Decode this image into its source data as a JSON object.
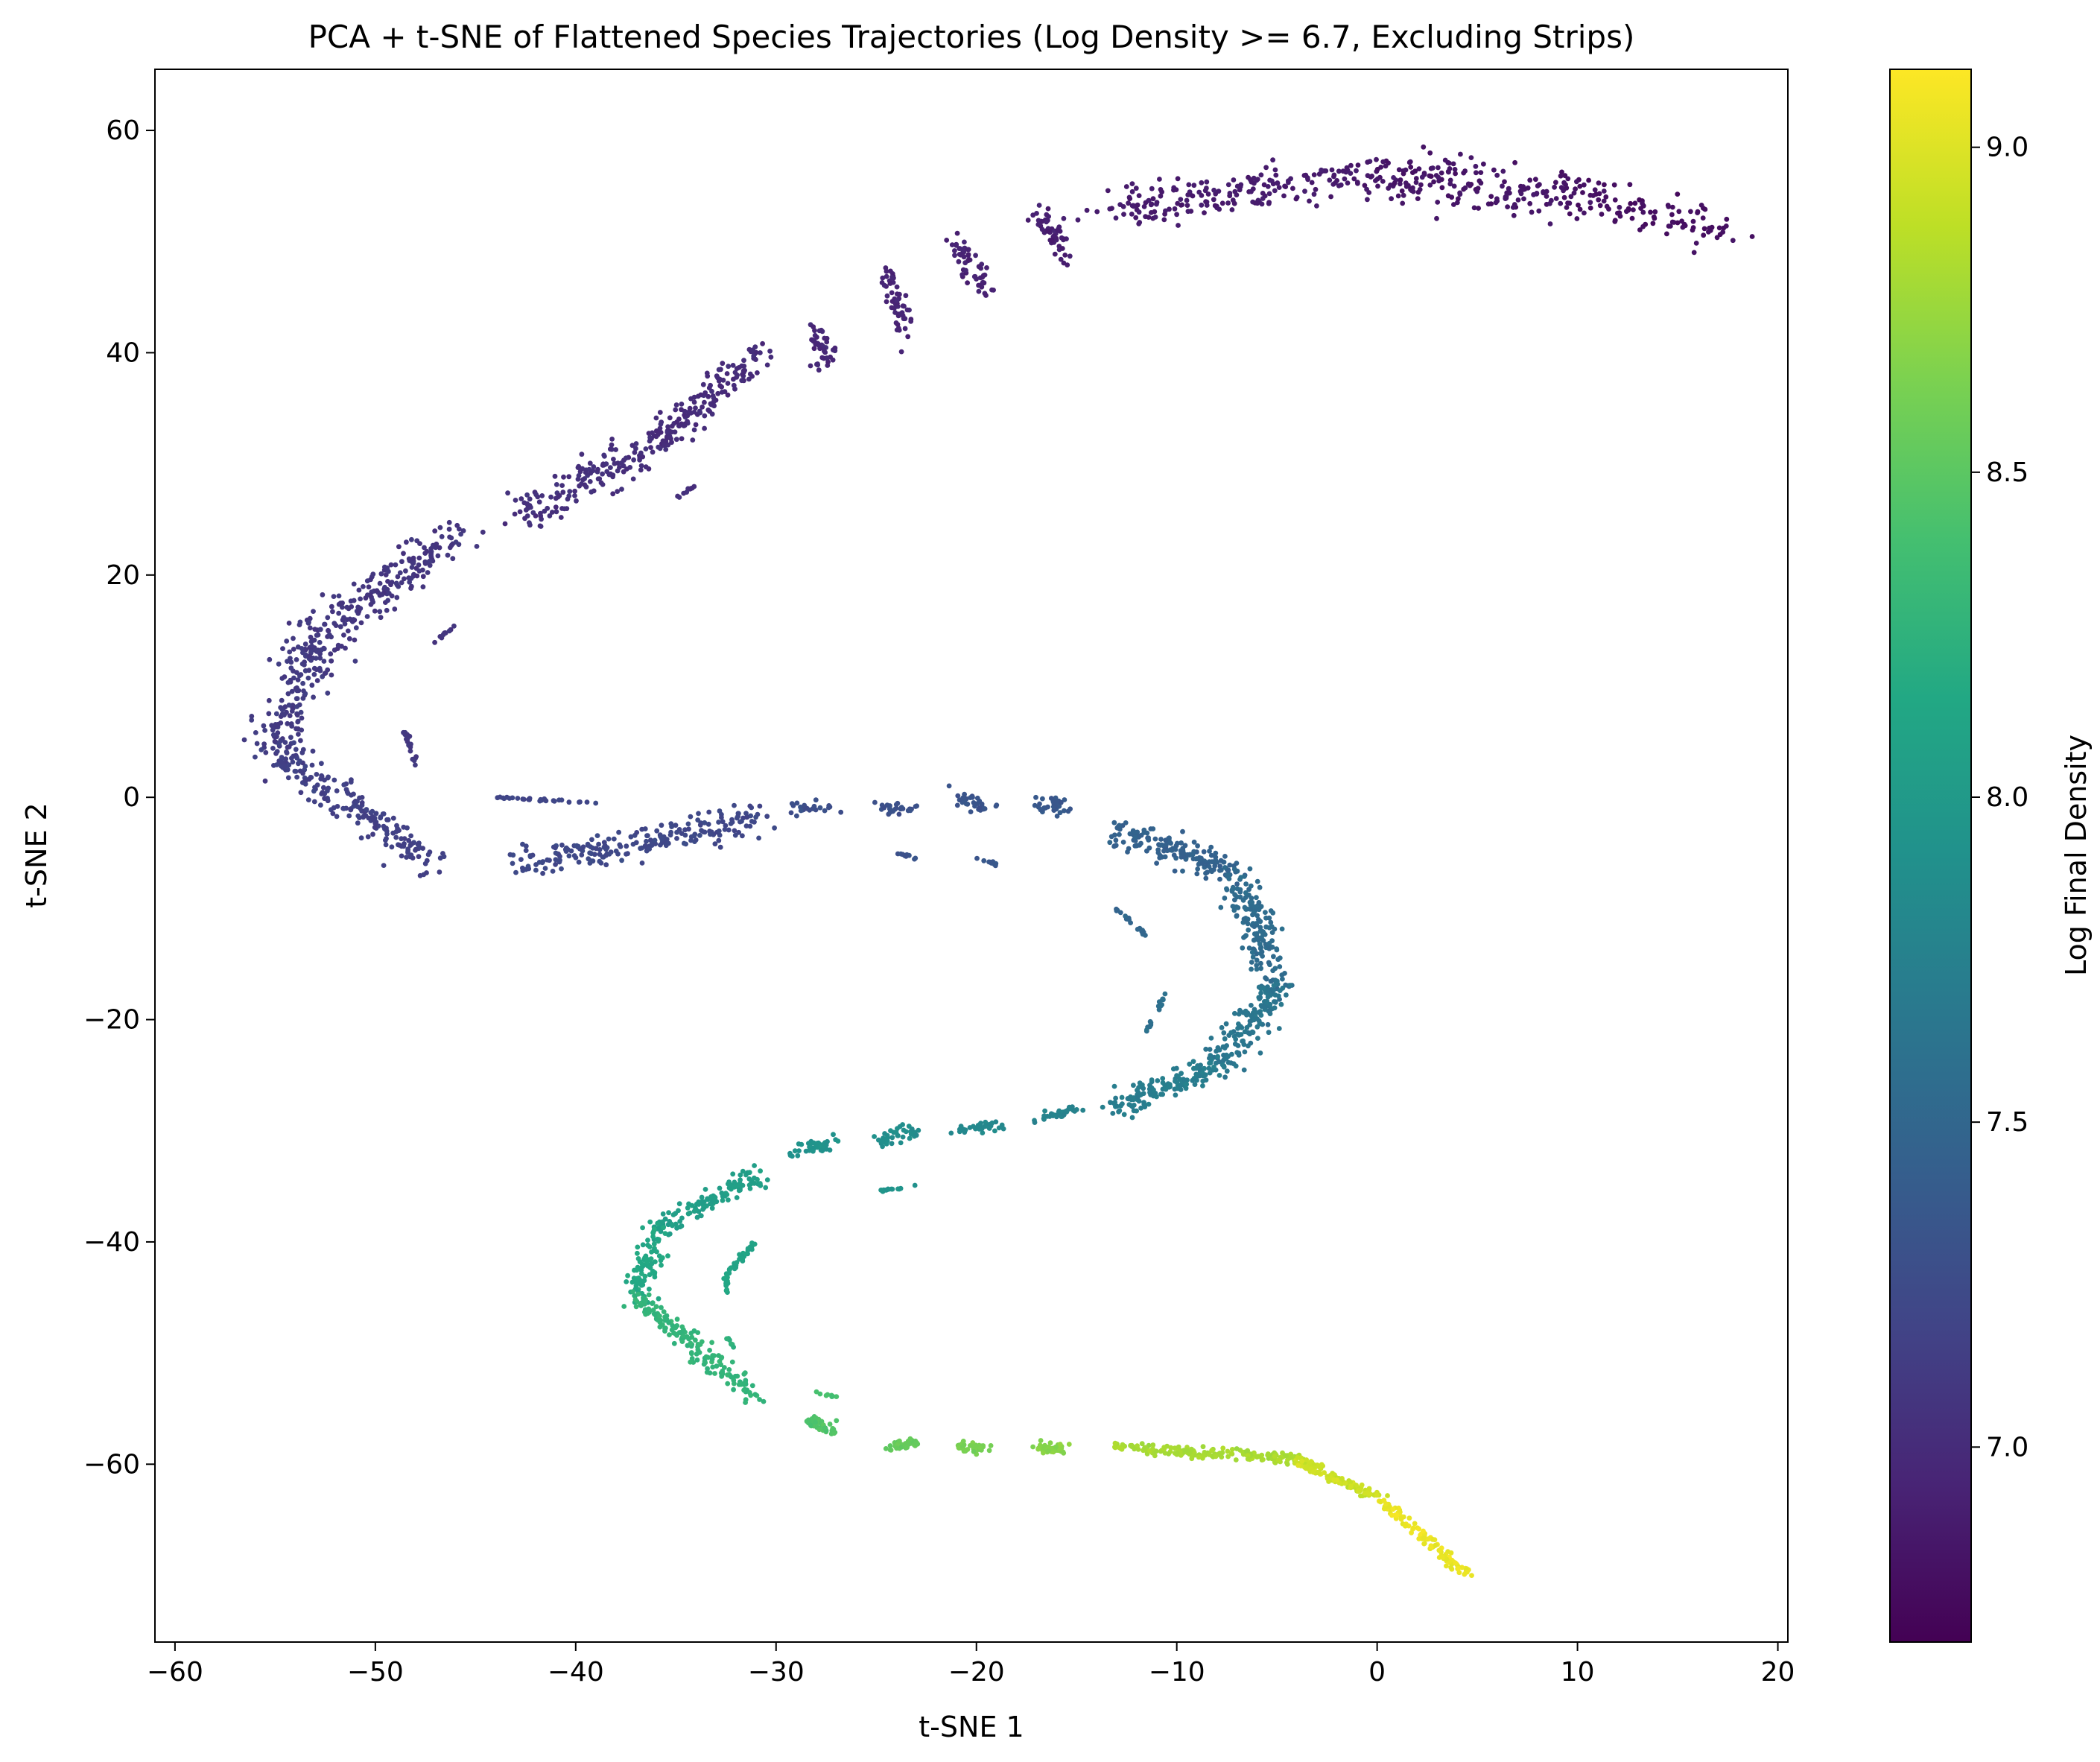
{
  "chart_data": {
    "type": "scatter",
    "title": "PCA + t-SNE of Flattened Species Trajectories (Log Density >= 6.7, Excluding Strips)",
    "xlabel": "t-SNE 1",
    "ylabel": "t-SNE 2",
    "xlim": [
      -61,
      20.5
    ],
    "ylim": [
      -76,
      65.5
    ],
    "xticks": [
      -60,
      -50,
      -40,
      -30,
      -20,
      -10,
      0,
      10,
      20
    ],
    "yticks": [
      -60,
      -40,
      -20,
      0,
      20,
      40,
      60
    ],
    "xtick_labels": [
      "−60",
      "−50",
      "−40",
      "−30",
      "−20",
      "−10",
      "0",
      "10",
      "20"
    ],
    "ytick_labels": [
      "−60",
      "−40",
      "−20",
      "0",
      "20",
      "40",
      "60"
    ],
    "grid": false,
    "colormap": "viridis",
    "colorbar": {
      "label": "Log Final Density",
      "range": [
        6.7,
        9.12
      ],
      "ticks": [
        7.0,
        7.5,
        8.0,
        8.5,
        9.0
      ],
      "tick_labels": [
        "7.0",
        "7.5",
        "8.0",
        "8.5",
        "9.0"
      ]
    },
    "series": [
      {
        "segments": [
          {
            "x0": 17,
            "y0": 51,
            "x1": 10,
            "y1": 54,
            "n": 90,
            "sx": 1.5,
            "sy": 1.8,
            "c": 6.8
          },
          {
            "x0": 10,
            "y0": 54,
            "x1": 0,
            "y1": 56,
            "n": 200,
            "sx": 2.0,
            "sy": 1.8,
            "c": 6.84
          },
          {
            "x0": 0,
            "y0": 56,
            "x1": -13,
            "y1": 53,
            "n": 200,
            "sx": 1.8,
            "sy": 1.5,
            "c": 6.88
          },
          {
            "x0": -15.5,
            "y0": 48.5,
            "x1": -17,
            "y1": 53,
            "n": 50,
            "sx": 0.4,
            "sy": 1.2,
            "c": 6.91
          },
          {
            "x0": -19.5,
            "y0": 45.5,
            "x1": -21,
            "y1": 50,
            "n": 55,
            "sx": 0.5,
            "sy": 1.2,
            "c": 6.93
          },
          {
            "x0": -23.5,
            "y0": 42.5,
            "x1": -24.5,
            "y1": 47,
            "n": 55,
            "sx": 0.5,
            "sy": 1.2,
            "c": 6.95
          },
          {
            "x0": -27.5,
            "y0": 39,
            "x1": -28,
            "y1": 42,
            "n": 45,
            "sx": 0.5,
            "sy": 1.0,
            "c": 6.97
          },
          {
            "x0": -31,
            "y0": 40,
            "x1": -36,
            "y1": 32,
            "n": 150,
            "sx": 0.9,
            "sy": 1.2,
            "c": 7.0
          },
          {
            "x0": -36,
            "y0": 32,
            "x1": -43,
            "y1": 25,
            "n": 150,
            "sx": 1.0,
            "sy": 1.4,
            "c": 7.03
          },
          {
            "x0": -46,
            "y0": 24,
            "x1": -53,
            "y1": 14,
            "n": 200,
            "sx": 1.2,
            "sy": 1.8,
            "c": 7.08
          },
          {
            "x0": -53,
            "y0": 14,
            "x1": -55,
            "y1": 4,
            "n": 170,
            "sx": 1.2,
            "sy": 2.0,
            "c": 7.12
          },
          {
            "x0": -55,
            "y0": 4,
            "x1": -47,
            "y1": -6,
            "n": 200,
            "sx": 1.0,
            "sy": 1.3,
            "c": 7.16
          },
          {
            "x0": -43,
            "y0": -6,
            "x1": -31,
            "y1": -2,
            "n": 220,
            "sx": 0.9,
            "sy": 1.3,
            "c": 7.22
          },
          {
            "x0": -27,
            "y0": -1,
            "x1": -29,
            "y1": -1,
            "n": 25,
            "sx": 0.4,
            "sy": 0.5,
            "c": 7.27
          },
          {
            "x0": -23,
            "y0": -1,
            "x1": -25,
            "y1": -1,
            "n": 25,
            "sx": 0.4,
            "sy": 0.5,
            "c": 7.3
          },
          {
            "x0": -19.5,
            "y0": -1,
            "x1": -21,
            "y1": 0,
            "n": 30,
            "sx": 0.4,
            "sy": 0.7,
            "c": 7.33
          },
          {
            "x0": -15.5,
            "y0": -1,
            "x1": -17,
            "y1": -0.5,
            "n": 35,
            "sx": 0.4,
            "sy": 0.7,
            "c": 7.36
          },
          {
            "x0": -13,
            "y0": -3,
            "x1": -7,
            "y1": -7,
            "n": 160,
            "sx": 0.9,
            "sy": 1.1,
            "c": 7.45
          },
          {
            "x0": -7,
            "y0": -7,
            "x1": -5,
            "y1": -17,
            "n": 170,
            "sx": 0.9,
            "sy": 1.6,
            "c": 7.55
          },
          {
            "x0": -5,
            "y0": -17,
            "x1": -8,
            "y1": -24,
            "n": 150,
            "sx": 0.9,
            "sy": 1.2,
            "c": 7.65
          },
          {
            "x0": -8,
            "y0": -24,
            "x1": -13,
            "y1": -28,
            "n": 140,
            "sx": 0.9,
            "sy": 0.9,
            "c": 7.72
          },
          {
            "x0": -15,
            "y0": -28,
            "x1": -17,
            "y1": -29,
            "n": 35,
            "sx": 0.5,
            "sy": 0.5,
            "c": 7.78
          },
          {
            "x0": -19,
            "y0": -29.5,
            "x1": -21,
            "y1": -30,
            "n": 35,
            "sx": 0.5,
            "sy": 0.5,
            "c": 7.83
          },
          {
            "x0": -23,
            "y0": -30,
            "x1": -25,
            "y1": -31,
            "n": 40,
            "sx": 0.5,
            "sy": 0.6,
            "c": 7.88
          },
          {
            "x0": -27,
            "y0": -31,
            "x1": -29,
            "y1": -32,
            "n": 40,
            "sx": 0.5,
            "sy": 0.6,
            "c": 7.93
          },
          {
            "x0": -31,
            "y0": -34,
            "x1": -36,
            "y1": -39,
            "n": 120,
            "sx": 0.6,
            "sy": 0.9,
            "c": 8.05
          },
          {
            "x0": -36,
            "y0": -39,
            "x1": -37,
            "y1": -45,
            "n": 90,
            "sx": 0.6,
            "sy": 1.2,
            "c": 8.15
          },
          {
            "x0": -37,
            "y0": -45,
            "x1": -31,
            "y1": -54,
            "n": 160,
            "sx": 0.6,
            "sy": 0.9,
            "c": 8.28
          },
          {
            "x0": -28.5,
            "y0": -56,
            "x1": -27,
            "y1": -57,
            "n": 40,
            "sx": 0.4,
            "sy": 0.5,
            "c": 8.45
          },
          {
            "x0": -23,
            "y0": -58,
            "x1": -24.5,
            "y1": -58.5,
            "n": 40,
            "sx": 0.4,
            "sy": 0.4,
            "c": 8.55
          },
          {
            "x0": -19.5,
            "y0": -58.5,
            "x1": -21,
            "y1": -58.5,
            "n": 40,
            "sx": 0.4,
            "sy": 0.4,
            "c": 8.62
          },
          {
            "x0": -15.5,
            "y0": -58.5,
            "x1": -17,
            "y1": -58.5,
            "n": 40,
            "sx": 0.4,
            "sy": 0.4,
            "c": 8.68
          },
          {
            "x0": -13,
            "y0": -58.5,
            "x1": -4,
            "y1": -59.5,
            "n": 160,
            "sx": 0.6,
            "sy": 0.4,
            "c": 8.8
          },
          {
            "x0": -4,
            "y0": -59.5,
            "x1": 0,
            "y1": -63,
            "n": 90,
            "sx": 0.4,
            "sy": 0.4,
            "c": 8.92
          },
          {
            "x0": 0,
            "y0": -63,
            "x1": 4.5,
            "y1": -70,
            "n": 110,
            "sx": 0.3,
            "sy": 0.4,
            "c": 9.05
          },
          {
            "x0": -48.5,
            "y0": 6,
            "x1": -48,
            "y1": 3,
            "n": 20,
            "sx": 0.1,
            "sy": 0.2,
            "c": 7.1
          },
          {
            "x0": -44,
            "y0": 0,
            "x1": -39,
            "y1": -0.5,
            "n": 30,
            "sx": 0.1,
            "sy": 0.1,
            "c": 7.2
          },
          {
            "x0": -47,
            "y0": 14,
            "x1": -46,
            "y1": 15.5,
            "n": 10,
            "sx": 0.1,
            "sy": 0.1,
            "c": 7.07
          },
          {
            "x0": -35,
            "y0": 27,
            "x1": -34,
            "y1": 28,
            "n": 10,
            "sx": 0.1,
            "sy": 0.1,
            "c": 7.02
          },
          {
            "x0": -24,
            "y0": -5,
            "x1": -23,
            "y1": -5.5,
            "n": 10,
            "sx": 0.1,
            "sy": 0.1,
            "c": 7.31
          },
          {
            "x0": -20,
            "y0": -5.5,
            "x1": -19,
            "y1": -6,
            "n": 10,
            "sx": 0.1,
            "sy": 0.1,
            "c": 7.34
          },
          {
            "x0": -13,
            "y0": -10,
            "x1": -11.5,
            "y1": -12.5,
            "n": 18,
            "sx": 0.1,
            "sy": 0.1,
            "c": 7.5
          },
          {
            "x0": -10.5,
            "y0": -17.5,
            "x1": -11.5,
            "y1": -21,
            "n": 18,
            "sx": 0.1,
            "sy": 0.1,
            "c": 7.6
          },
          {
            "x0": -25,
            "y0": -35.5,
            "x1": -23,
            "y1": -35,
            "n": 15,
            "sx": 0.1,
            "sy": 0.1,
            "c": 7.95
          },
          {
            "x0": -31,
            "y0": -40,
            "x1": -32.5,
            "y1": -43,
            "n": 35,
            "sx": 0.15,
            "sy": 0.15,
            "c": 8.1
          },
          {
            "x0": -32.5,
            "y0": -43,
            "x1": -32.5,
            "y1": -45,
            "n": 15,
            "sx": 0.1,
            "sy": 0.1,
            "c": 8.15
          },
          {
            "x0": -32.5,
            "y0": -48.5,
            "x1": -32,
            "y1": -49.5,
            "n": 8,
            "sx": 0.1,
            "sy": 0.1,
            "c": 8.25
          },
          {
            "x0": -28,
            "y0": -53.5,
            "x1": -27,
            "y1": -54,
            "n": 8,
            "sx": 0.1,
            "sy": 0.1,
            "c": 8.4
          },
          {
            "x0": -4,
            "y0": -60,
            "x1": 0,
            "y1": -63,
            "n": 40,
            "sx": 0.1,
            "sy": 0.1,
            "c": 8.95
          }
        ]
      }
    ]
  }
}
